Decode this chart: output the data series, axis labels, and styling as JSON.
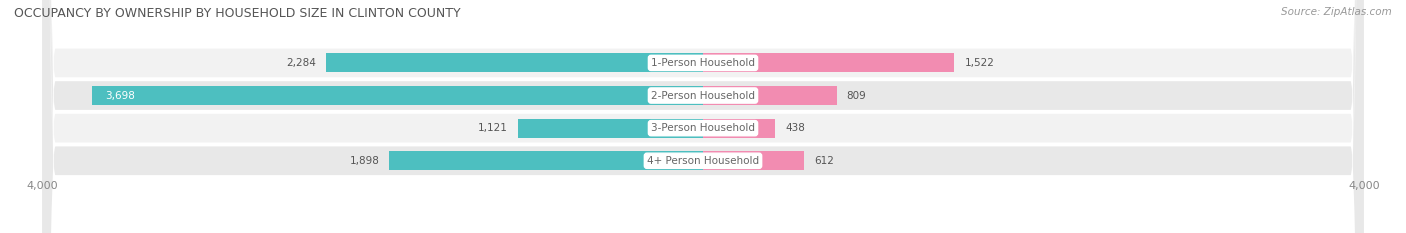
{
  "title": "OCCUPANCY BY OWNERSHIP BY HOUSEHOLD SIZE IN CLINTON COUNTY",
  "source": "Source: ZipAtlas.com",
  "categories": [
    "1-Person Household",
    "2-Person Household",
    "3-Person Household",
    "4+ Person Household"
  ],
  "owner_values": [
    2284,
    3698,
    1121,
    1898
  ],
  "renter_values": [
    1522,
    809,
    438,
    612
  ],
  "owner_color": "#4DBFC0",
  "renter_color": "#F28CB1",
  "row_bg_light": "#F2F2F2",
  "row_bg_dark": "#E8E8E8",
  "axis_limit": 4000,
  "bar_height": 0.58,
  "label_color": "#555555",
  "label_white": "#FFFFFF",
  "center_label_color": "#666666",
  "title_color": "#555555",
  "source_color": "#999999",
  "axis_label_color": "#888888",
  "figsize": [
    14.06,
    2.33
  ],
  "dpi": 100
}
